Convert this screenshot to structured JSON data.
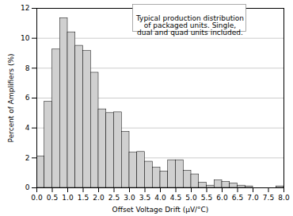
{
  "chart_data": {
    "type": "histogram",
    "xlabel": "Offset Voltage Drift (μV/°C)",
    "ylabel": "Percent of Amplifiers (%)",
    "bins": [
      0.0,
      0.25,
      0.5,
      0.75,
      1.0,
      1.25,
      1.5,
      1.75,
      2.0,
      2.25,
      2.5,
      2.75,
      3.0,
      3.25,
      3.5,
      3.75,
      4.0,
      4.25,
      4.5,
      4.75,
      5.0,
      5.25,
      5.5,
      5.75,
      6.0,
      6.25,
      6.5,
      6.75,
      7.0,
      7.25,
      7.5,
      7.75,
      8.0
    ],
    "values": [
      2.1,
      5.75,
      9.25,
      11.35,
      10.4,
      9.5,
      9.15,
      7.7,
      5.25,
      5.0,
      5.05,
      3.75,
      2.35,
      2.4,
      1.75,
      1.35,
      1.1,
      1.85,
      1.85,
      1.15,
      0.9,
      0.35,
      0.15,
      0.5,
      0.4,
      0.3,
      0.15,
      0.1,
      0.0,
      0.0,
      0.0,
      0.1
    ],
    "color": "#d0d0d0",
    "xlim": [
      0.0,
      8.0
    ],
    "ylim": [
      0,
      12
    ],
    "xticks": [
      {
        "value": 0,
        "label": "0.0"
      },
      0.5,
      {
        "value": 1,
        "label": "1.0"
      },
      1.5,
      {
        "value": 2,
        "label": "2.0"
      },
      2.5,
      {
        "value": 3,
        "label": "3.0"
      },
      3.5,
      {
        "value": 4,
        "label": "4.0"
      },
      4.5,
      {
        "value": 5,
        "label": "5.0"
      },
      5.5,
      {
        "value": 6,
        "label": "6.0"
      },
      6.5,
      {
        "value": 7,
        "label": "7.0"
      },
      7.5,
      {
        "value": 8,
        "label": "8.0"
      }
    ],
    "yticks": [
      0,
      2,
      4,
      6,
      8,
      10,
      12
    ],
    "grid": "y",
    "annotation": "Typical production distribution\nof packaged units. Single,\ndual and quad units included."
  }
}
